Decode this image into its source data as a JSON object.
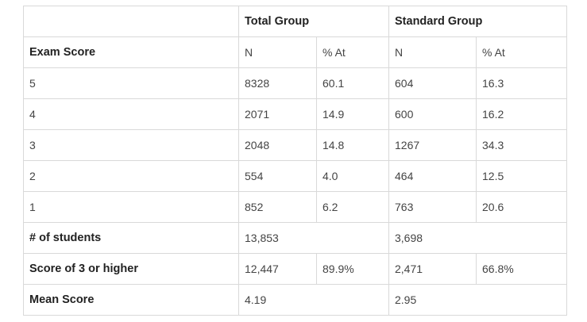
{
  "table": {
    "group_headers": {
      "blank": "",
      "total_group": "Total Group",
      "standard_group": "Standard Group"
    },
    "column_headers": {
      "exam_score": "Exam Score",
      "total_n": "N",
      "total_pct": "% At",
      "standard_n": "N",
      "standard_pct": "% At"
    },
    "rows": [
      {
        "score": "5",
        "total_n": "8328",
        "total_pct": "60.1",
        "standard_n": "604",
        "standard_pct": "16.3"
      },
      {
        "score": "4",
        "total_n": "2071",
        "total_pct": "14.9",
        "standard_n": "600",
        "standard_pct": "16.2"
      },
      {
        "score": "3",
        "total_n": "2048",
        "total_pct": "14.8",
        "standard_n": "1267",
        "standard_pct": "34.3"
      },
      {
        "score": "2",
        "total_n": "554",
        "total_pct": "4.0",
        "standard_n": "464",
        "standard_pct": "12.5"
      },
      {
        "score": "1",
        "total_n": "852",
        "total_pct": "6.2",
        "standard_n": "763",
        "standard_pct": "20.6"
      }
    ],
    "students": {
      "label": "# of students",
      "total": "13,853",
      "standard": "3,698"
    },
    "three_or_higher": {
      "label": "Score of 3 or higher",
      "total_n": "12,447",
      "total_pct": "89.9%",
      "standard_n": "2,471",
      "standard_pct": "66.8%"
    },
    "mean": {
      "label": "Mean Score",
      "total": "4.19",
      "standard": "2.95"
    }
  }
}
